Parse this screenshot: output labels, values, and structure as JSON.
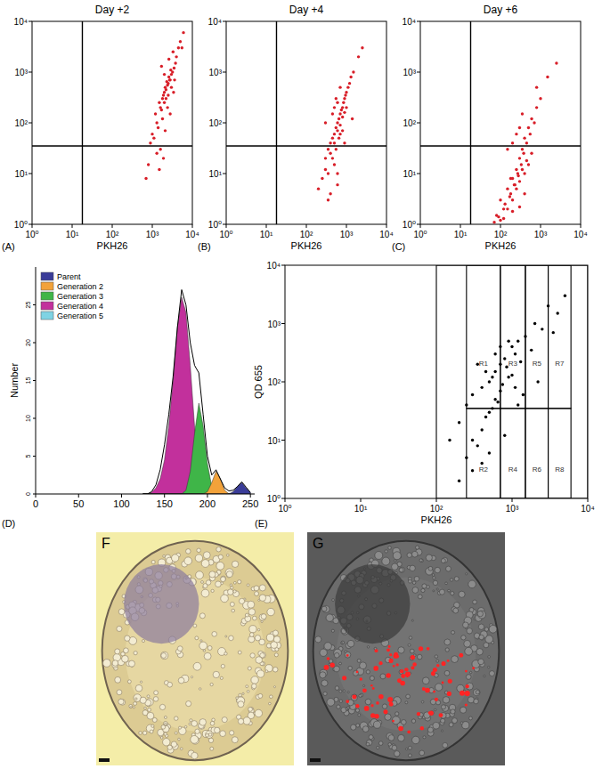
{
  "chart_data": [
    {
      "type": "scatter",
      "panel": "(A)",
      "title": "Day +2",
      "x_label": "PKH26",
      "log": true,
      "color": "#d81e28",
      "xlim": [
        1,
        10000
      ],
      "ylim": [
        1,
        10000
      ],
      "xticks": [
        {
          "value": 1,
          "label": "10⁰"
        },
        {
          "value": 10,
          "label": "10¹"
        },
        {
          "value": 100,
          "label": "10²"
        },
        {
          "value": 1000,
          "label": "10³"
        },
        {
          "value": 10000,
          "label": "10⁴"
        }
      ],
      "yticks": [
        {
          "value": 1,
          "label": "10⁰"
        },
        {
          "value": 10,
          "label": "10¹"
        },
        {
          "value": 100,
          "label": "10²"
        },
        {
          "value": 1000,
          "label": "10³"
        },
        {
          "value": 10000,
          "label": "10⁴"
        }
      ],
      "gate_x": 18,
      "gate_y": 35,
      "x": [
        1200,
        1500,
        1800,
        2000,
        2200,
        2500,
        2800,
        3000,
        3500,
        4000,
        1600,
        1900,
        2100,
        2400,
        2600,
        3200,
        3800,
        4500,
        5000,
        6000,
        1000,
        1300,
        1700,
        2300,
        2700,
        2900,
        3300,
        1400,
        2000,
        2500,
        900,
        1100,
        1800,
        2200,
        3000,
        1600,
        2400,
        1900,
        2800,
        3600,
        800,
        1500,
        2100,
        700,
        1300,
        2000,
        1700,
        2600,
        3400,
        5500
      ],
      "values": [
        150,
        250,
        300,
        400,
        450,
        600,
        700,
        900,
        1200,
        2000,
        200,
        350,
        500,
        550,
        800,
        1000,
        1500,
        3000,
        4000,
        6000,
        60,
        100,
        180,
        650,
        700,
        1100,
        2500,
        80,
        250,
        350,
        40,
        50,
        120,
        300,
        500,
        30,
        200,
        20,
        150,
        700,
        15,
        12,
        70,
        8,
        25,
        900,
        1300,
        1800,
        400,
        3000
      ]
    },
    {
      "type": "scatter",
      "panel": "(B)",
      "title": "Day +4",
      "x_label": "PKH26",
      "log": true,
      "color": "#d81e28",
      "xlim": [
        1,
        10000
      ],
      "ylim": [
        1,
        10000
      ],
      "xticks": [
        {
          "value": 1,
          "label": "10⁰"
        },
        {
          "value": 10,
          "label": "10¹"
        },
        {
          "value": 100,
          "label": "10²"
        },
        {
          "value": 1000,
          "label": "10³"
        },
        {
          "value": 10000,
          "label": "10⁴"
        }
      ],
      "yticks": [
        {
          "value": 1,
          "label": "10⁰"
        },
        {
          "value": 10,
          "label": "10¹"
        },
        {
          "value": 100,
          "label": "10²"
        },
        {
          "value": 1000,
          "label": "10³"
        },
        {
          "value": 10000,
          "label": "10⁴"
        }
      ],
      "gate_x": 18,
      "gate_y": 35,
      "x": [
        300,
        400,
        500,
        600,
        700,
        800,
        900,
        1000,
        1200,
        1500,
        350,
        450,
        550,
        650,
        750,
        850,
        950,
        1100,
        1300,
        2000,
        250,
        300,
        400,
        500,
        600,
        700,
        800,
        900,
        500,
        600,
        200,
        350,
        450,
        550,
        650,
        700,
        400,
        500,
        600,
        800,
        300,
        450,
        550,
        1000,
        1400,
        2500,
        700,
        350,
        600,
        900
      ],
      "values": [
        20,
        40,
        60,
        100,
        150,
        200,
        300,
        400,
        600,
        1000,
        30,
        50,
        80,
        120,
        180,
        250,
        350,
        500,
        800,
        2000,
        8,
        12,
        25,
        40,
        70,
        90,
        130,
        160,
        15,
        10,
        5,
        10,
        20,
        30,
        50,
        60,
        4,
        200,
        250,
        70,
        100,
        150,
        300,
        200,
        120,
        3000,
        500,
        3,
        6,
        40
      ]
    },
    {
      "type": "scatter",
      "panel": "(C)",
      "title": "Day +6",
      "x_label": "PKH26",
      "log": true,
      "color": "#d81e28",
      "xlim": [
        1,
        10000
      ],
      "ylim": [
        1,
        10000
      ],
      "xticks": [
        {
          "value": 1,
          "label": "10⁰"
        },
        {
          "value": 10,
          "label": "10¹"
        },
        {
          "value": 100,
          "label": "10²"
        },
        {
          "value": 1000,
          "label": "10³"
        },
        {
          "value": 10000,
          "label": "10⁴"
        }
      ],
      "yticks": [
        {
          "value": 1,
          "label": "10⁰"
        },
        {
          "value": 10,
          "label": "10¹"
        },
        {
          "value": 100,
          "label": "10²"
        },
        {
          "value": 1000,
          "label": "10³"
        },
        {
          "value": 10000,
          "label": "10⁴"
        }
      ],
      "gate_x": 18,
      "gate_y": 35,
      "x": [
        100,
        150,
        200,
        250,
        300,
        350,
        400,
        500,
        600,
        800,
        120,
        180,
        220,
        270,
        330,
        380,
        450,
        550,
        700,
        1000,
        80,
        100,
        150,
        200,
        250,
        300,
        400,
        500,
        150,
        200,
        90,
        130,
        170,
        230,
        280,
        350,
        450,
        600,
        250,
        300,
        70,
        120,
        200,
        300,
        800,
        1500,
        2500,
        400,
        180,
        350
      ],
      "values": [
        3,
        5,
        8,
        12,
        20,
        30,
        50,
        80,
        120,
        200,
        2,
        4,
        6,
        10,
        15,
        25,
        40,
        60,
        100,
        300,
        1.5,
        1.2,
        2,
        3,
        5,
        7,
        10,
        15,
        30,
        40,
        1.4,
        2.5,
        3.5,
        6,
        9,
        12,
        18,
        25,
        60,
        80,
        1.1,
        1.3,
        1.8,
        2.2,
        500,
        800,
        1500,
        4,
        8,
        150
      ]
    },
    {
      "type": "area",
      "panel": "(D)",
      "y_label": "Number",
      "legend": "top-left",
      "xlim": [
        0,
        255
      ],
      "ylim": [
        0,
        30
      ],
      "xticks": [
        0,
        50,
        100,
        150,
        200,
        250
      ],
      "yticks": [
        0,
        5,
        10,
        15,
        20,
        25
      ],
      "x": [
        125,
        130,
        135,
        140,
        145,
        150,
        155,
        160,
        165,
        170,
        175,
        180,
        185,
        190,
        195,
        200,
        205,
        210,
        215,
        220,
        225,
        230,
        235,
        240,
        245,
        250
      ],
      "series": [
        {
          "name": "Parent",
          "color": "#3a3c98",
          "values": [
            0,
            0,
            0,
            0,
            0,
            0,
            0,
            0,
            0,
            0,
            0,
            0,
            0,
            0,
            0,
            0,
            0,
            0,
            0,
            0,
            0,
            0.3,
            1,
            1.5,
            0.8,
            0.2
          ]
        },
        {
          "name": "Generation 2",
          "color": "#f2a23a",
          "values": [
            0,
            0,
            0,
            0,
            0,
            0,
            0,
            0,
            0,
            0,
            0,
            0,
            0,
            0,
            0,
            0.3,
            1.5,
            3,
            2,
            0.5,
            0,
            0,
            0,
            0,
            0,
            0
          ]
        },
        {
          "name": "Generation 3",
          "color": "#3fb548",
          "values": [
            0,
            0,
            0,
            0,
            0,
            0,
            0,
            0,
            0,
            0,
            0.5,
            3,
            8,
            12,
            9,
            4,
            1,
            0.2,
            0,
            0,
            0,
            0,
            0,
            0,
            0,
            0
          ]
        },
        {
          "name": "Generation 4",
          "color": "#c2309c",
          "values": [
            0,
            0,
            0.2,
            0.8,
            2,
            4.5,
            9,
            15,
            22,
            26,
            24,
            17,
            9,
            4,
            1.5,
            0.5,
            0.1,
            0,
            0,
            0,
            0,
            0,
            0,
            0,
            0,
            0
          ]
        },
        {
          "name": "Generation 5",
          "color": "#7fd3e3",
          "values": [
            0,
            0,
            0,
            0.3,
            1.2,
            2,
            1.5,
            0.5,
            0,
            0,
            0,
            0,
            0,
            0,
            0,
            0,
            0,
            0,
            0,
            0,
            0,
            0,
            0,
            0,
            0,
            0
          ]
        }
      ],
      "envelope": {
        "color": "#000000",
        "values": [
          0,
          0,
          0.3,
          1.2,
          3.2,
          6.5,
          10.5,
          15.5,
          22,
          27,
          25,
          20,
          17,
          16,
          10.5,
          5,
          2.5,
          3.2,
          2,
          0.8,
          0.4,
          0.5,
          1,
          1.6,
          0.9,
          0.2
        ]
      }
    },
    {
      "type": "scatter",
      "panel": "(E)",
      "x_label": "PKH26",
      "y_label": "QD 655",
      "log": true,
      "color": "#000000",
      "xlim": [
        1,
        10000
      ],
      "ylim": [
        1,
        10000
      ],
      "xticks": [
        {
          "value": 1,
          "label": "10⁰"
        },
        {
          "value": 10,
          "label": "10¹"
        },
        {
          "value": 100,
          "label": "10²"
        },
        {
          "value": 1000,
          "label": "10³"
        },
        {
          "value": 10000,
          "label": "10⁴"
        }
      ],
      "yticks": [
        {
          "value": 1,
          "label": "10⁰"
        },
        {
          "value": 10,
          "label": "10¹"
        },
        {
          "value": 100,
          "label": "10²"
        },
        {
          "value": 1000,
          "label": "10³"
        },
        {
          "value": 10000,
          "label": "10⁴"
        }
      ],
      "gates": [
        {
          "label": "R1",
          "x": [
            250,
            700
          ],
          "y": [
            35,
            10000
          ]
        },
        {
          "label": "R3",
          "x": [
            700,
            1500
          ],
          "y": [
            35,
            10000
          ]
        },
        {
          "label": "R5",
          "x": [
            1500,
            3000
          ],
          "y": [
            35,
            10000
          ]
        },
        {
          "label": "R7",
          "x": [
            3000,
            6000
          ],
          "y": [
            35,
            10000
          ]
        },
        {
          "label": "R2",
          "x": [
            250,
            700
          ],
          "y": [
            1,
            35
          ]
        },
        {
          "label": "R4",
          "x": [
            700,
            1500
          ],
          "y": [
            1,
            35
          ]
        },
        {
          "label": "R6",
          "x": [
            1500,
            3000
          ],
          "y": [
            1,
            35
          ]
        },
        {
          "label": "R8",
          "x": [
            3000,
            6000
          ],
          "y": [
            1,
            35
          ]
        },
        {
          "x": [
            100,
            10000
          ],
          "y": [
            1,
            10000
          ]
        }
      ],
      "x": [
        200,
        250,
        300,
        400,
        500,
        600,
        700,
        800,
        1000,
        1200,
        300,
        400,
        500,
        600,
        700,
        900,
        1100,
        1500,
        2000,
        3000,
        250,
        350,
        450,
        550,
        650,
        750,
        850,
        1000,
        1300,
        1800,
        200,
        300,
        400,
        500,
        800,
        1200,
        2500,
        4000,
        5000,
        600,
        350,
        450,
        550,
        700,
        900,
        1100,
        1400,
        2200,
        3500,
        150
      ],
      "values": [
        20,
        40,
        60,
        80,
        100,
        150,
        200,
        250,
        400,
        500,
        10,
        15,
        30,
        50,
        70,
        120,
        300,
        600,
        1000,
        2000,
        5,
        8,
        25,
        35,
        45,
        90,
        180,
        130,
        220,
        350,
        2,
        3,
        4,
        6,
        12,
        40,
        800,
        1500,
        3000,
        300,
        200,
        150,
        120,
        400,
        500,
        80,
        60,
        100,
        700,
        10
      ]
    }
  ],
  "images": [
    {
      "label": "F"
    },
    {
      "label": "G"
    }
  ]
}
